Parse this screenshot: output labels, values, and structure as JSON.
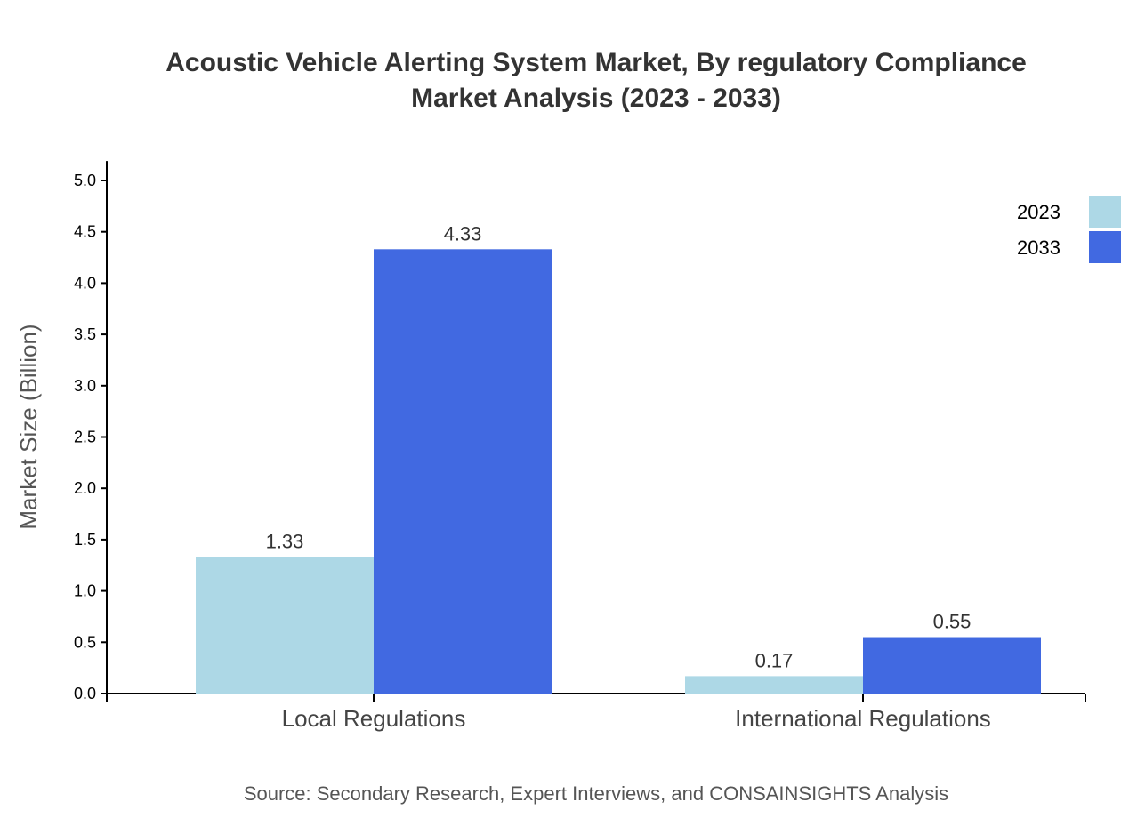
{
  "chart_data": {
    "type": "bar",
    "title_lines": [
      "Acoustic Vehicle Alerting System Market, By regulatory Compliance",
      "Market Analysis (2023 - 2033)"
    ],
    "xlabel": "",
    "ylabel": "Market Size (Billion)",
    "ylim": [
      0,
      5.19
    ],
    "yticks": [
      "0.0",
      "0.5",
      "1.0",
      "1.5",
      "2.0",
      "2.5",
      "3.0",
      "3.5",
      "4.0",
      "4.5",
      "5.0"
    ],
    "categories": [
      "Local Regulations",
      "International Regulations"
    ],
    "series": [
      {
        "name": "2023",
        "color": "#ADD8E6",
        "values": [
          1.33,
          0.17
        ],
        "labels": [
          "1.33",
          "0.17"
        ]
      },
      {
        "name": "2033",
        "color": "#4169E1",
        "values": [
          4.33,
          0.55
        ],
        "labels": [
          "4.33",
          "0.55"
        ]
      }
    ],
    "legend_position": "top-right",
    "grid": false,
    "source": "Source: Secondary Research, Expert Interviews, and CONSAINSIGHTS Analysis"
  }
}
